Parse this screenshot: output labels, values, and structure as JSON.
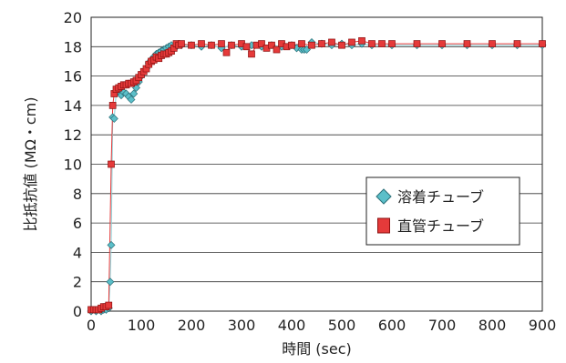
{
  "chart_data": {
    "type": "line",
    "xlabel": "時間 (sec)",
    "ylabel": "比抵抗値 (MΩ・cm)",
    "xlim": [
      0,
      900
    ],
    "ylim": [
      0,
      20
    ],
    "xticks": [
      "0",
      "100",
      "200",
      "300",
      "400",
      "500",
      "600",
      "700",
      "800",
      "900"
    ],
    "yticks": [
      "0",
      "2",
      "4",
      "6",
      "8",
      "10",
      "12",
      "14",
      "16",
      "18",
      "20"
    ],
    "grid": "horizontal",
    "legend_position": "right",
    "series": [
      {
        "name": "溶着チューブ",
        "marker": "diamond",
        "color": "#5bbfc9",
        "x": [
          0,
          10,
          20,
          25,
          30,
          35,
          38,
          40,
          43,
          46,
          50,
          55,
          60,
          65,
          70,
          75,
          80,
          85,
          90,
          95,
          100,
          105,
          110,
          115,
          120,
          125,
          130,
          135,
          140,
          145,
          150,
          155,
          160,
          170,
          180,
          200,
          220,
          240,
          260,
          280,
          300,
          320,
          340,
          360,
          380,
          400,
          410,
          420,
          425,
          430,
          440,
          460,
          480,
          500,
          520,
          540,
          560,
          600,
          650,
          700,
          750,
          800,
          850,
          900
        ],
        "y": [
          0.0,
          0.0,
          0.0,
          0.1,
          0.1,
          0.2,
          2.0,
          4.5,
          13.2,
          13.1,
          14.9,
          15.0,
          14.7,
          14.9,
          14.8,
          14.6,
          14.4,
          14.8,
          15.2,
          15.6,
          16.0,
          16.3,
          16.5,
          16.9,
          17.1,
          17.3,
          17.5,
          17.6,
          17.7,
          17.8,
          17.9,
          18.0,
          18.1,
          18.0,
          18.1,
          18.1,
          18.0,
          18.1,
          17.9,
          18.1,
          18.0,
          18.1,
          18.0,
          18.1,
          18.0,
          18.1,
          17.9,
          17.8,
          17.8,
          17.8,
          18.3,
          18.2,
          18.1,
          18.2,
          18.1,
          18.2,
          18.1,
          18.1,
          18.1,
          18.1,
          18.1,
          18.1,
          18.1,
          18.1
        ]
      },
      {
        "name": "直管チューブ",
        "marker": "square",
        "color": "#e53a3a",
        "x": [
          0,
          5,
          10,
          15,
          20,
          25,
          30,
          35,
          40,
          43,
          46,
          50,
          55,
          60,
          65,
          70,
          75,
          80,
          85,
          90,
          95,
          100,
          105,
          110,
          115,
          120,
          125,
          130,
          135,
          140,
          145,
          150,
          155,
          160,
          165,
          170,
          175,
          180,
          200,
          220,
          240,
          260,
          270,
          280,
          300,
          310,
          320,
          330,
          340,
          350,
          360,
          370,
          380,
          390,
          400,
          420,
          440,
          460,
          480,
          500,
          520,
          540,
          560,
          580,
          600,
          650,
          700,
          750,
          800,
          850,
          900
        ],
        "y": [
          0.1,
          0.1,
          0.1,
          0.1,
          0.2,
          0.3,
          0.3,
          0.4,
          10.0,
          14.0,
          14.8,
          15.1,
          15.2,
          15.3,
          15.4,
          15.4,
          15.5,
          15.5,
          15.6,
          15.7,
          15.9,
          16.1,
          16.3,
          16.5,
          16.8,
          17.0,
          17.1,
          17.3,
          17.2,
          17.4,
          17.5,
          17.5,
          17.6,
          17.7,
          17.9,
          18.2,
          18.1,
          18.2,
          18.1,
          18.2,
          18.1,
          18.2,
          17.6,
          18.1,
          18.2,
          18.0,
          17.5,
          18.1,
          18.2,
          17.9,
          18.1,
          17.8,
          18.2,
          18.0,
          18.1,
          18.2,
          18.1,
          18.2,
          18.3,
          18.1,
          18.3,
          18.4,
          18.2,
          18.2,
          18.2,
          18.2,
          18.2,
          18.2,
          18.2,
          18.2,
          18.2
        ]
      }
    ]
  }
}
